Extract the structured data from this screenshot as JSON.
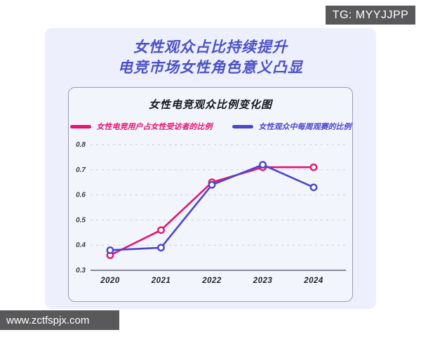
{
  "page": {
    "tg_badge": "TG: MYYJJPP",
    "watermark": "www.zctfspjx.com"
  },
  "header": {
    "title_line1": "女性观众占比持续提升",
    "title_line2": "电竞市场女性角色意义凸显"
  },
  "chart_data": {
    "type": "line",
    "title": "女性电竞观众比例变化图",
    "categories": [
      "2020",
      "2021",
      "2022",
      "2023",
      "2024"
    ],
    "series": [
      {
        "name": "女性电竞用户占女性受访者的比例",
        "color": "#e3156f",
        "values": [
          0.36,
          0.46,
          0.65,
          0.71,
          0.71
        ]
      },
      {
        "name": "女性观众中每周观赛的比例",
        "color": "#4a46cc",
        "values": [
          0.38,
          0.39,
          0.64,
          0.72,
          0.63
        ]
      }
    ],
    "ylim": [
      0.3,
      0.8
    ],
    "yticks": [
      0.3,
      0.4,
      0.5,
      0.6,
      0.7,
      0.8
    ],
    "xlabel": "",
    "ylabel": "",
    "grid": "horizontal dashed",
    "legend_position": "top",
    "marker": "open-circle"
  },
  "colors": {
    "header_title": "#4c51c6",
    "card_bg": "#edf0fc",
    "panel_bg": "#f3f5fd",
    "badge_bg": "#59595b",
    "gridline": "#c9cbda",
    "axis_line": "#858898"
  }
}
